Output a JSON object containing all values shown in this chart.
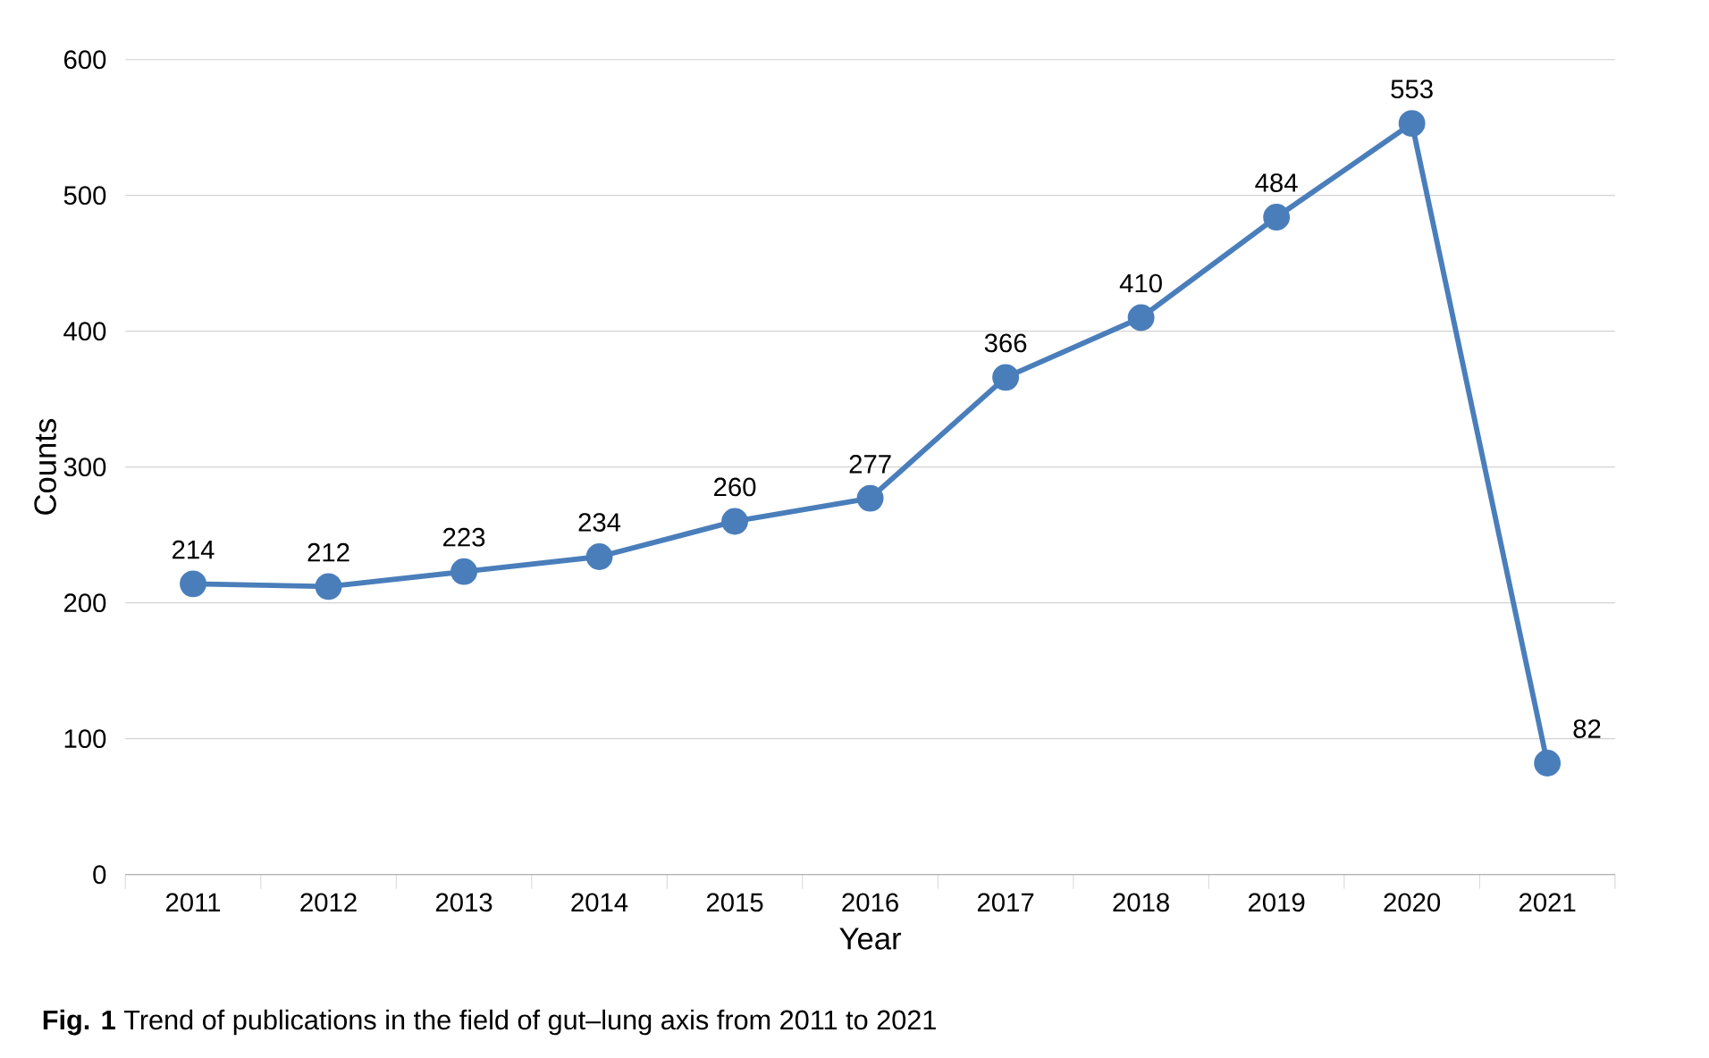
{
  "chart_data": {
    "type": "line",
    "xlabel": "Year",
    "ylabel": "Counts",
    "categories": [
      "2011",
      "2012",
      "2013",
      "2014",
      "2015",
      "2016",
      "2017",
      "2018",
      "2019",
      "2020",
      "2021"
    ],
    "values": [
      214,
      212,
      223,
      234,
      260,
      277,
      366,
      410,
      484,
      553,
      82
    ],
    "color": "#4a7ebb",
    "marker": "circle",
    "line_style": "solid",
    "data_labels": true,
    "grid": "y",
    "ylim": [
      0,
      600
    ],
    "yticks": [
      0,
      100,
      200,
      300,
      400,
      500,
      600
    ],
    "annotations": [
      "**Fig. 1** Trend of publications in the field of gut–lung axis from 2011 to 2021"
    ]
  }
}
